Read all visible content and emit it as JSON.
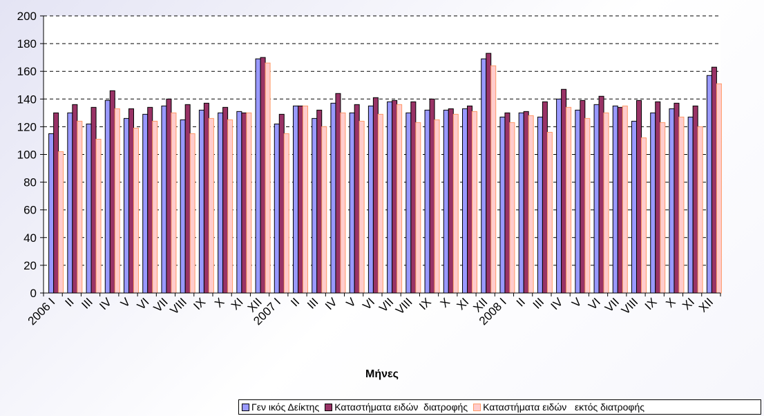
{
  "chart_data": {
    "type": "bar",
    "xlabel": "Μήνες",
    "ylabel": "",
    "ylim": [
      0,
      200
    ],
    "yticks": [
      0,
      20,
      40,
      60,
      80,
      100,
      120,
      140,
      160,
      180,
      200
    ],
    "grid": true,
    "legend_position": "bottom-right",
    "categories": [
      "2006 I",
      "II",
      "III",
      "IV",
      "V",
      "VI",
      "VII",
      "VIII",
      "IX",
      "X",
      "XI",
      "XII",
      "2007 I",
      "II",
      "III",
      "IV",
      "V",
      "VI",
      "VII",
      "VIII",
      "IX",
      "X",
      "XI",
      "XII",
      "2008 I",
      "II",
      "III",
      "IV",
      "V",
      "VI",
      "VII",
      "VIII",
      "IX",
      "X",
      "XI",
      "XII"
    ],
    "series": [
      {
        "name": "Γεν ικός Δείκτης",
        "color": "#9999ff",
        "values": [
          115,
          130,
          122,
          139,
          126,
          129,
          135,
          125,
          132,
          130,
          131,
          169,
          122,
          135,
          126,
          137,
          130,
          135,
          138,
          130,
          132,
          132,
          133,
          169,
          127,
          130,
          127,
          140,
          132,
          136,
          135,
          124,
          130,
          133,
          127,
          157
        ]
      },
      {
        "name": "Καταστήματα ειδών  διατροφής",
        "color": "#993366",
        "values": [
          130,
          136,
          134,
          146,
          133,
          134,
          140,
          136,
          137,
          134,
          130,
          170,
          129,
          135,
          132,
          144,
          136,
          141,
          139,
          138,
          140,
          133,
          135,
          173,
          130,
          131,
          138,
          147,
          139,
          142,
          134,
          139,
          138,
          137,
          135,
          163
        ]
      },
      {
        "name": "Καταστήματα ειδών   εκτός διατροφής",
        "color": "#ffcccc",
        "edge": "#ff9966",
        "values": [
          102,
          124,
          111,
          133,
          119,
          124,
          130,
          115,
          126,
          125,
          130,
          166,
          115,
          135,
          120,
          130,
          124,
          129,
          136,
          123,
          125,
          129,
          131,
          164,
          123,
          128,
          116,
          134,
          126,
          130,
          135,
          112,
          123,
          127,
          120,
          151
        ]
      }
    ]
  }
}
